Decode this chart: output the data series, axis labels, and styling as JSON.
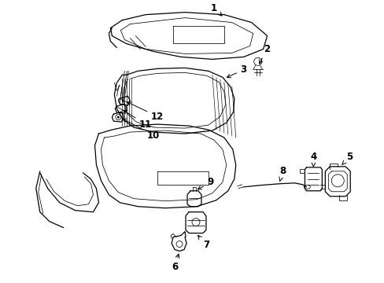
{
  "bg_color": "#ffffff",
  "line_color": "#000000",
  "label_color": "#000000",
  "arrow_color": "#000000",
  "fig_width": 4.89,
  "fig_height": 3.6,
  "dpi": 100,
  "lw": 0.9,
  "thin_lw": 0.55,
  "label_fs": 8.5
}
